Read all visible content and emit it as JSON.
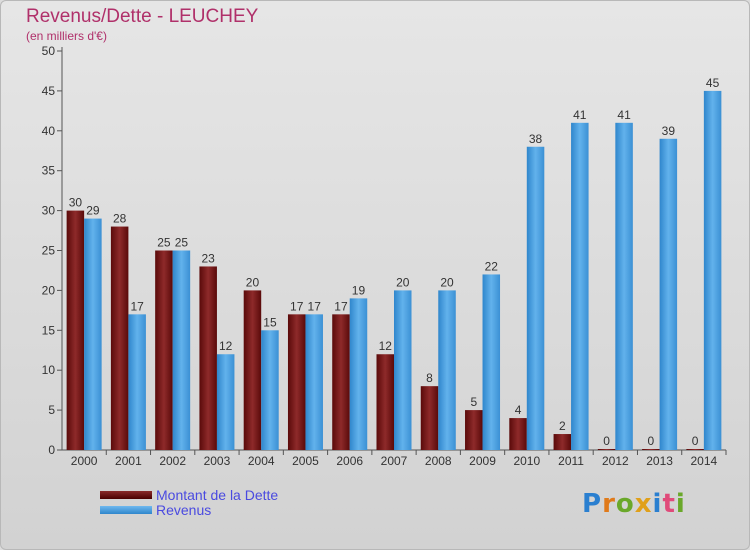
{
  "chart_data": {
    "type": "bar",
    "title": "Revenus/Dette - LEUCHEY",
    "subtitle": "(en milliers d'€)",
    "categories": [
      "2000",
      "2001",
      "2002",
      "2003",
      "2004",
      "2005",
      "2006",
      "2007",
      "2008",
      "2009",
      "2010",
      "2011",
      "2012",
      "2013",
      "2014"
    ],
    "series": [
      {
        "name": "Montant de la Dette",
        "values": [
          30,
          28,
          25,
          23,
          20,
          17,
          17,
          12,
          8,
          5,
          4,
          2,
          0,
          0,
          0
        ],
        "color": "#7a1e1e"
      },
      {
        "name": "Revenus",
        "values": [
          29,
          17,
          25,
          12,
          15,
          17,
          19,
          20,
          20,
          22,
          38,
          41,
          41,
          39,
          45
        ],
        "color": "#4aa3e3"
      }
    ],
    "ylim": [
      0,
      50
    ],
    "yticks": [
      0,
      5,
      10,
      15,
      20,
      25,
      30,
      35,
      40,
      45,
      50
    ],
    "legend_position": "bottom-left",
    "grid": false
  },
  "logo": {
    "letters": [
      "P",
      "r",
      "o",
      "x",
      "i",
      "t",
      "i"
    ]
  }
}
